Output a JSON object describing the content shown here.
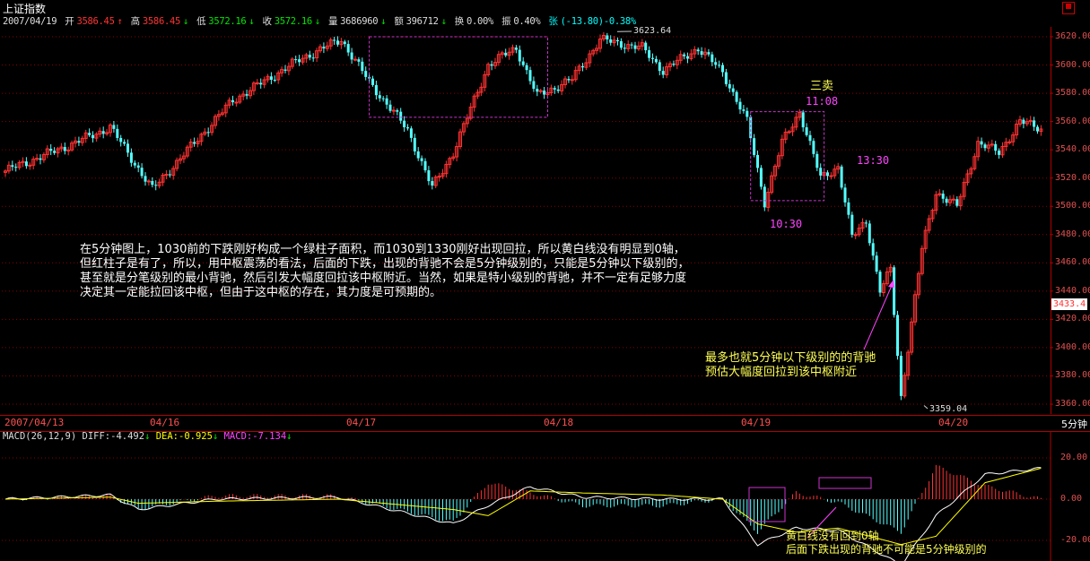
{
  "header": {
    "title": "上证指数",
    "date": "2007/04/19",
    "open_label": "开",
    "open": "3586.45",
    "high_label": "高",
    "high": "3586.45",
    "low_label": "低",
    "low": "3572.16",
    "close_label": "收",
    "close": "3572.16",
    "volume_label": "量",
    "volume": "3686960",
    "amount_label": "额",
    "amount": "396712",
    "turnover_label": "换",
    "turnover": "0.00%",
    "amplitude_label": "振",
    "amplitude": "0.40%",
    "change_label": "张",
    "change": "(-13.80)-0.38%"
  },
  "period": "5分钟",
  "dates": [
    "2007/04/13",
    "04/16",
    "04/17",
    "04/18",
    "04/19",
    "04/20"
  ],
  "price_axis": [
    "3620.00",
    "3600.00",
    "3580.00",
    "3560.00",
    "3540.00",
    "3520.00",
    "3500.00",
    "3480.00",
    "3460.00",
    "3440.00",
    "3420.00",
    "3400.00",
    "3380.00",
    "3360.00"
  ],
  "current_price": "3433.4",
  "high_mark": "3623.64",
  "low_mark": "3359.04",
  "times": {
    "t1": "10:30",
    "t2": "11:08",
    "t3": "13:30"
  },
  "sell_label": "三卖",
  "note_lines": [
    "在5分钟图上，1030前的下跌刚好构成一个绿柱子面积，而1030到1330刚好出现回拉，所以黄白线没有明显到0轴，",
    "但红柱子是有了，所以，用中枢震荡的看法，后面的下跌，出现的背驰不会是5分钟级别的，只能是5分钟以下级别的，",
    "甚至就是分笔级别的最小背驰，然后引发大幅度回拉该中枢附近。当然，如果是特小级别的背驰，并不一定有足够力度",
    "决定其一定能拉回该中枢，但由于这中枢的存在，其力度是可预期的。"
  ],
  "note_right": [
    "最多也就5分钟以下级别的的背驰",
    "预估大幅度回拉到该中枢附近"
  ],
  "note_macd": [
    "黄白线没有回到0轴",
    "后面下跌出现的背驰不可能是5分钟级别的"
  ],
  "macd": {
    "label": "MACD(26,12,9)",
    "diff_label": "DIFF:",
    "diff": "-4.492",
    "dea_label": "DEA:",
    "dea": "-0.925",
    "macd_label": "MACD:",
    "macd": "-7.134",
    "axis": [
      "20.00",
      "0.00",
      "-20.00"
    ]
  },
  "colors": {
    "up": "#ff3232",
    "down": "#54ffff",
    "diff": "#ffffff",
    "dea": "#ffff00",
    "box": "#cc33cc",
    "grid": "#8b0000"
  },
  "chart_data": {
    "type": "candlestick",
    "title": "上证指数",
    "x": [
      "2007/04/13",
      "04/16",
      "04/17",
      "04/18",
      "04/19",
      "04/20"
    ],
    "ylim": [
      3350,
      3630
    ],
    "anchors": [
      {
        "bar": 0,
        "price": 3525
      },
      {
        "bar": 20,
        "price": 3545
      },
      {
        "bar": 30,
        "price": 3556
      },
      {
        "bar": 42,
        "price": 3512
      },
      {
        "bar": 65,
        "price": 3575
      },
      {
        "bar": 85,
        "price": 3605
      },
      {
        "bar": 96,
        "price": 3618
      },
      {
        "bar": 104,
        "price": 3588
      },
      {
        "bar": 115,
        "price": 3554
      },
      {
        "bar": 122,
        "price": 3513
      },
      {
        "bar": 128,
        "price": 3538
      },
      {
        "bar": 138,
        "price": 3600
      },
      {
        "bar": 146,
        "price": 3612
      },
      {
        "bar": 152,
        "price": 3578
      },
      {
        "bar": 162,
        "price": 3590
      },
      {
        "bar": 170,
        "price": 3618
      },
      {
        "bar": 182,
        "price": 3612
      },
      {
        "bar": 188,
        "price": 3596
      },
      {
        "bar": 198,
        "price": 3612
      },
      {
        "bar": 205,
        "price": 3595
      },
      {
        "bar": 212,
        "price": 3560
      },
      {
        "bar": 217,
        "price": 3503
      },
      {
        "bar": 222,
        "price": 3545
      },
      {
        "bar": 227,
        "price": 3567
      },
      {
        "bar": 233,
        "price": 3520
      },
      {
        "bar": 238,
        "price": 3528
      },
      {
        "bar": 242,
        "price": 3478
      },
      {
        "bar": 246,
        "price": 3490
      },
      {
        "bar": 250,
        "price": 3440
      },
      {
        "bar": 253,
        "price": 3455
      },
      {
        "bar": 256,
        "price": 3365
      },
      {
        "bar": 258,
        "price": 3400
      },
      {
        "bar": 262,
        "price": 3470
      },
      {
        "bar": 266,
        "price": 3510
      },
      {
        "bar": 272,
        "price": 3500
      },
      {
        "bar": 278,
        "price": 3545
      },
      {
        "bar": 284,
        "price": 3538
      },
      {
        "bar": 290,
        "price": 3560
      },
      {
        "bar": 296,
        "price": 3555
      }
    ],
    "bars": 297,
    "high": {
      "value": 3623.64
    },
    "low": {
      "value": 3359.04
    },
    "zhongshu_boxes": [
      {
        "from_bar": 104,
        "to_bar": 155,
        "low": 3563,
        "high": 3620
      },
      {
        "from_bar": 213,
        "to_bar": 234,
        "low": 3504,
        "high": 3567
      }
    ],
    "macd_ylim": [
      -30,
      30
    ],
    "macd_anchors": [
      {
        "bar": 0,
        "diff": 0,
        "dea": 0
      },
      {
        "bar": 30,
        "diff": 2,
        "dea": 1
      },
      {
        "bar": 38,
        "diff": -5,
        "dea": -2
      },
      {
        "bar": 60,
        "diff": 0,
        "dea": -1
      },
      {
        "bar": 95,
        "diff": 1,
        "dea": 0
      },
      {
        "bar": 128,
        "diff": -12,
        "dea": -5
      },
      {
        "bar": 138,
        "diff": -3,
        "dea": -8
      },
      {
        "bar": 150,
        "diff": 6,
        "dea": 4
      },
      {
        "bar": 165,
        "diff": 1,
        "dea": 3
      },
      {
        "bar": 188,
        "diff": 0,
        "dea": 2
      },
      {
        "bar": 205,
        "diff": 0,
        "dea": 0
      },
      {
        "bar": 215,
        "diff": -22,
        "dea": -12
      },
      {
        "bar": 226,
        "diff": -14,
        "dea": -16
      },
      {
        "bar": 238,
        "diff": -15,
        "dea": -14
      },
      {
        "bar": 256,
        "diff": -32,
        "dea": -22
      },
      {
        "bar": 266,
        "diff": -8,
        "dea": -18
      },
      {
        "bar": 280,
        "diff": 12,
        "dea": 8
      },
      {
        "bar": 296,
        "diff": 15,
        "dea": 15
      }
    ]
  }
}
